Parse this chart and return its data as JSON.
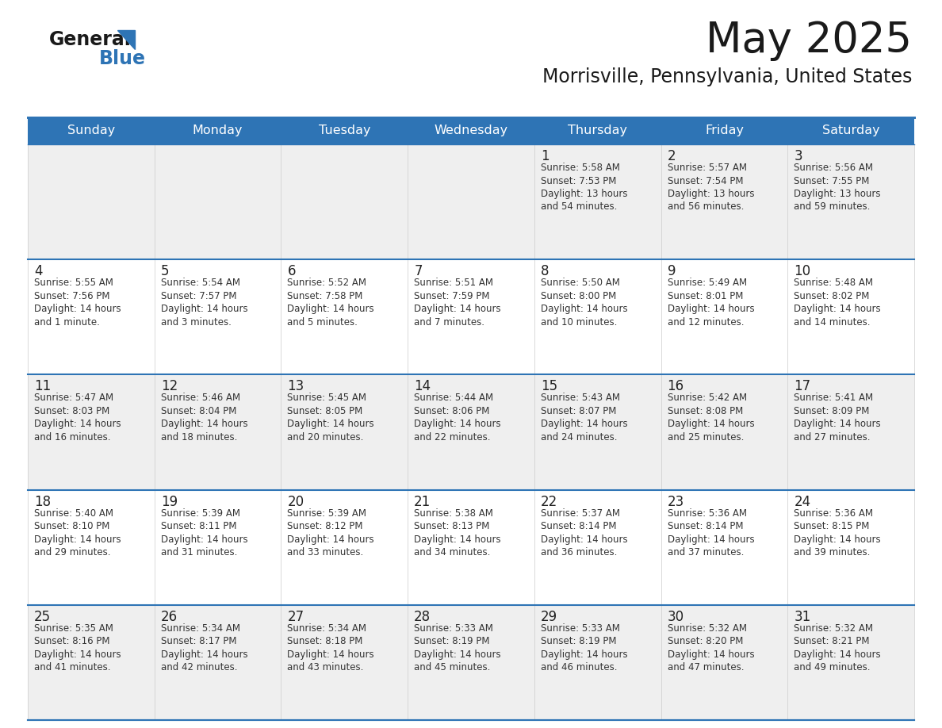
{
  "title": "May 2025",
  "subtitle": "Morrisville, Pennsylvania, United States",
  "header_bg": "#2E74B5",
  "header_text_color": "#FFFFFF",
  "day_names": [
    "Sunday",
    "Monday",
    "Tuesday",
    "Wednesday",
    "Thursday",
    "Friday",
    "Saturday"
  ],
  "cell_bg_odd": "#EFEFEF",
  "cell_bg_even": "#FFFFFF",
  "cell_border_color": "#2E74B5",
  "day_num_color": "#222222",
  "info_text_color": "#333333",
  "background_color": "#FFFFFF",
  "days": [
    {
      "day": 1,
      "week": 0,
      "col": 4,
      "sunrise": "5:58 AM",
      "sunset": "7:53 PM",
      "daylight": "13 hours\nand 54 minutes."
    },
    {
      "day": 2,
      "week": 0,
      "col": 5,
      "sunrise": "5:57 AM",
      "sunset": "7:54 PM",
      "daylight": "13 hours\nand 56 minutes."
    },
    {
      "day": 3,
      "week": 0,
      "col": 6,
      "sunrise": "5:56 AM",
      "sunset": "7:55 PM",
      "daylight": "13 hours\nand 59 minutes."
    },
    {
      "day": 4,
      "week": 1,
      "col": 0,
      "sunrise": "5:55 AM",
      "sunset": "7:56 PM",
      "daylight": "14 hours\nand 1 minute."
    },
    {
      "day": 5,
      "week": 1,
      "col": 1,
      "sunrise": "5:54 AM",
      "sunset": "7:57 PM",
      "daylight": "14 hours\nand 3 minutes."
    },
    {
      "day": 6,
      "week": 1,
      "col": 2,
      "sunrise": "5:52 AM",
      "sunset": "7:58 PM",
      "daylight": "14 hours\nand 5 minutes."
    },
    {
      "day": 7,
      "week": 1,
      "col": 3,
      "sunrise": "5:51 AM",
      "sunset": "7:59 PM",
      "daylight": "14 hours\nand 7 minutes."
    },
    {
      "day": 8,
      "week": 1,
      "col": 4,
      "sunrise": "5:50 AM",
      "sunset": "8:00 PM",
      "daylight": "14 hours\nand 10 minutes."
    },
    {
      "day": 9,
      "week": 1,
      "col": 5,
      "sunrise": "5:49 AM",
      "sunset": "8:01 PM",
      "daylight": "14 hours\nand 12 minutes."
    },
    {
      "day": 10,
      "week": 1,
      "col": 6,
      "sunrise": "5:48 AM",
      "sunset": "8:02 PM",
      "daylight": "14 hours\nand 14 minutes."
    },
    {
      "day": 11,
      "week": 2,
      "col": 0,
      "sunrise": "5:47 AM",
      "sunset": "8:03 PM",
      "daylight": "14 hours\nand 16 minutes."
    },
    {
      "day": 12,
      "week": 2,
      "col": 1,
      "sunrise": "5:46 AM",
      "sunset": "8:04 PM",
      "daylight": "14 hours\nand 18 minutes."
    },
    {
      "day": 13,
      "week": 2,
      "col": 2,
      "sunrise": "5:45 AM",
      "sunset": "8:05 PM",
      "daylight": "14 hours\nand 20 minutes."
    },
    {
      "day": 14,
      "week": 2,
      "col": 3,
      "sunrise": "5:44 AM",
      "sunset": "8:06 PM",
      "daylight": "14 hours\nand 22 minutes."
    },
    {
      "day": 15,
      "week": 2,
      "col": 4,
      "sunrise": "5:43 AM",
      "sunset": "8:07 PM",
      "daylight": "14 hours\nand 24 minutes."
    },
    {
      "day": 16,
      "week": 2,
      "col": 5,
      "sunrise": "5:42 AM",
      "sunset": "8:08 PM",
      "daylight": "14 hours\nand 25 minutes."
    },
    {
      "day": 17,
      "week": 2,
      "col": 6,
      "sunrise": "5:41 AM",
      "sunset": "8:09 PM",
      "daylight": "14 hours\nand 27 minutes."
    },
    {
      "day": 18,
      "week": 3,
      "col": 0,
      "sunrise": "5:40 AM",
      "sunset": "8:10 PM",
      "daylight": "14 hours\nand 29 minutes."
    },
    {
      "day": 19,
      "week": 3,
      "col": 1,
      "sunrise": "5:39 AM",
      "sunset": "8:11 PM",
      "daylight": "14 hours\nand 31 minutes."
    },
    {
      "day": 20,
      "week": 3,
      "col": 2,
      "sunrise": "5:39 AM",
      "sunset": "8:12 PM",
      "daylight": "14 hours\nand 33 minutes."
    },
    {
      "day": 21,
      "week": 3,
      "col": 3,
      "sunrise": "5:38 AM",
      "sunset": "8:13 PM",
      "daylight": "14 hours\nand 34 minutes."
    },
    {
      "day": 22,
      "week": 3,
      "col": 4,
      "sunrise": "5:37 AM",
      "sunset": "8:14 PM",
      "daylight": "14 hours\nand 36 minutes."
    },
    {
      "day": 23,
      "week": 3,
      "col": 5,
      "sunrise": "5:36 AM",
      "sunset": "8:14 PM",
      "daylight": "14 hours\nand 37 minutes."
    },
    {
      "day": 24,
      "week": 3,
      "col": 6,
      "sunrise": "5:36 AM",
      "sunset": "8:15 PM",
      "daylight": "14 hours\nand 39 minutes."
    },
    {
      "day": 25,
      "week": 4,
      "col": 0,
      "sunrise": "5:35 AM",
      "sunset": "8:16 PM",
      "daylight": "14 hours\nand 41 minutes."
    },
    {
      "day": 26,
      "week": 4,
      "col": 1,
      "sunrise": "5:34 AM",
      "sunset": "8:17 PM",
      "daylight": "14 hours\nand 42 minutes."
    },
    {
      "day": 27,
      "week": 4,
      "col": 2,
      "sunrise": "5:34 AM",
      "sunset": "8:18 PM",
      "daylight": "14 hours\nand 43 minutes."
    },
    {
      "day": 28,
      "week": 4,
      "col": 3,
      "sunrise": "5:33 AM",
      "sunset": "8:19 PM",
      "daylight": "14 hours\nand 45 minutes."
    },
    {
      "day": 29,
      "week": 4,
      "col": 4,
      "sunrise": "5:33 AM",
      "sunset": "8:19 PM",
      "daylight": "14 hours\nand 46 minutes."
    },
    {
      "day": 30,
      "week": 4,
      "col": 5,
      "sunrise": "5:32 AM",
      "sunset": "8:20 PM",
      "daylight": "14 hours\nand 47 minutes."
    },
    {
      "day": 31,
      "week": 4,
      "col": 6,
      "sunrise": "5:32 AM",
      "sunset": "8:21 PM",
      "daylight": "14 hours\nand 49 minutes."
    }
  ]
}
